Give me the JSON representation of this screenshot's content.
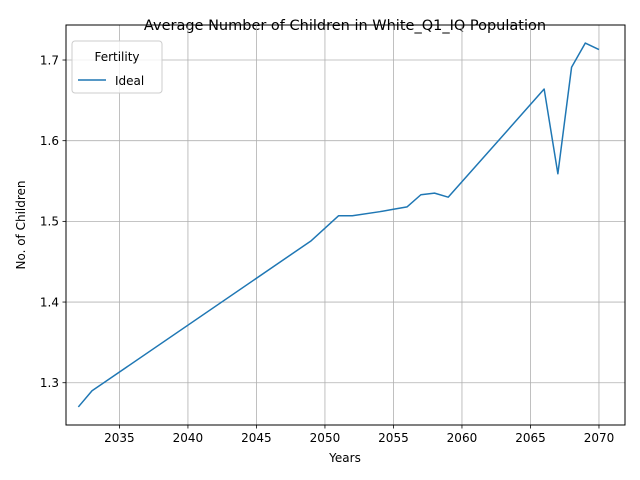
{
  "chart_data": {
    "type": "line",
    "title": "Average Number of Children in White_Q1_IQ Population",
    "xlabel": "Years",
    "ylabel": "No. of Children",
    "xlim": [
      2031.1,
      2071.9
    ],
    "ylim": [
      1.2476,
      1.7434
    ],
    "x_ticks": [
      2035,
      2040,
      2045,
      2050,
      2055,
      2060,
      2065,
      2070
    ],
    "y_ticks": [
      1.3,
      1.4,
      1.5,
      1.6,
      1.7
    ],
    "grid": true,
    "legend": {
      "title": "Fertility",
      "placement": "top-left"
    },
    "series": [
      {
        "name": "Ideal",
        "color": "#1f77b4",
        "x": [
          2032,
          2033,
          2049,
          2051,
          2052,
          2054,
          2055,
          2056,
          2057,
          2058,
          2059,
          2066,
          2067,
          2068,
          2069,
          2070
        ],
        "y": [
          1.27,
          1.29,
          1.476,
          1.507,
          1.507,
          1.512,
          1.515,
          1.518,
          1.533,
          1.535,
          1.53,
          1.664,
          1.559,
          1.691,
          1.721,
          1.713
        ]
      }
    ]
  }
}
